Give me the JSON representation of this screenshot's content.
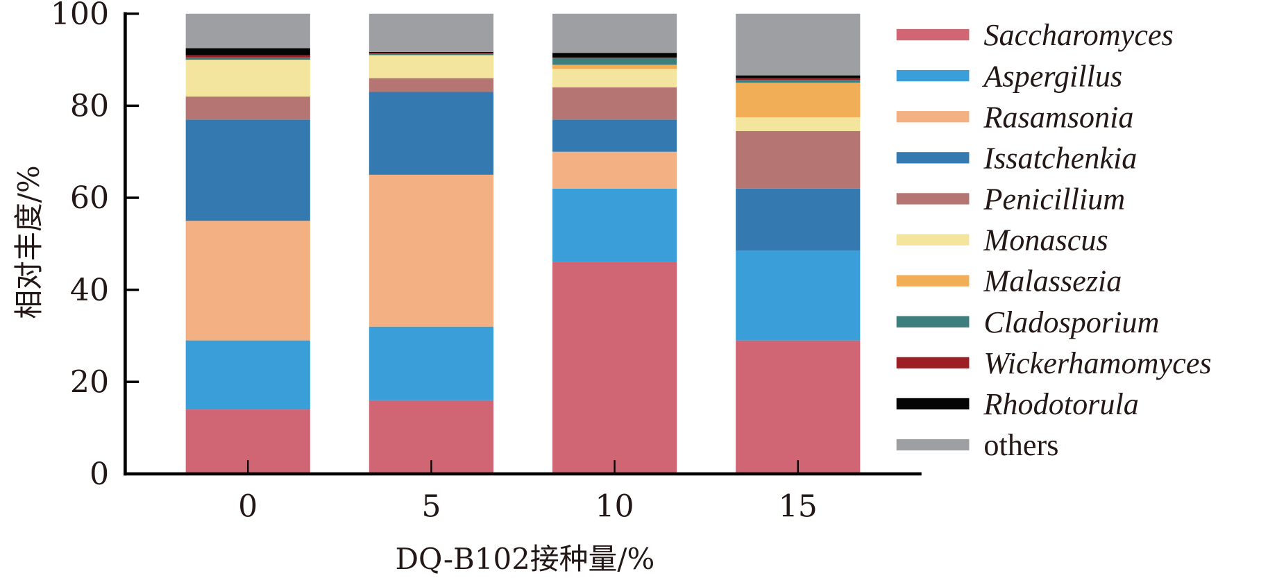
{
  "chart_data": {
    "type": "bar",
    "stacked": true,
    "title": "",
    "xlabel": "DQ-B102接种量/%",
    "ylabel": "相对丰度/%",
    "ylim": [
      0,
      100
    ],
    "yticks": [
      "0",
      "20",
      "40",
      "60",
      "80",
      "100"
    ],
    "categories": [
      "0",
      "5",
      "10",
      "15"
    ],
    "legend_position": "right",
    "series": [
      {
        "name": "Saccharomyces",
        "italic": true,
        "color": "#d06674",
        "values": [
          14,
          16,
          46,
          29
        ]
      },
      {
        "name": "Aspergillus",
        "italic": true,
        "color": "#3a9fd9",
        "values": [
          15,
          16,
          16,
          19.5
        ]
      },
      {
        "name": "Rasamsonia",
        "italic": true,
        "color": "#f2b083",
        "values": [
          26,
          33,
          8,
          0
        ]
      },
      {
        "name": "Issatchenkia",
        "italic": true,
        "color": "#3579b1",
        "values": [
          22,
          18,
          7,
          13.5
        ]
      },
      {
        "name": "Penicillium",
        "italic": true,
        "color": "#b57673",
        "values": [
          5,
          3,
          7,
          12.5
        ]
      },
      {
        "name": "Monascus",
        "italic": true,
        "color": "#f3e59d",
        "values": [
          8,
          5,
          4,
          3
        ]
      },
      {
        "name": "Malassezia",
        "italic": true,
        "color": "#f2ad57",
        "values": [
          0,
          0,
          0.9,
          7.5
        ]
      },
      {
        "name": "Cladosporium",
        "italic": true,
        "color": "#3e7f7e",
        "values": [
          0.5,
          0.3,
          1.4,
          0.6
        ]
      },
      {
        "name": "Wickerhamomyces",
        "italic": true,
        "color": "#9b1f25",
        "values": [
          0.5,
          0.2,
          0.2,
          0.4
        ]
      },
      {
        "name": "Rhodotorula",
        "italic": true,
        "color": "#050505",
        "values": [
          1.5,
          0.2,
          1.0,
          0.6
        ]
      },
      {
        "name": "others",
        "italic": false,
        "color": "#9e9fa3",
        "values": [
          7.5,
          8.3,
          8.5,
          13.4
        ]
      }
    ]
  }
}
